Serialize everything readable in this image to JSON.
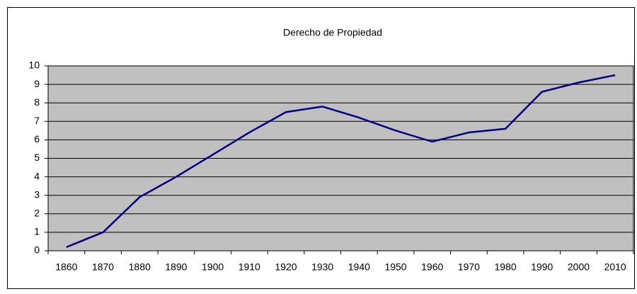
{
  "chart_data": {
    "type": "line",
    "title": "Derecho de Propiedad",
    "categories": [
      "1860",
      "1870",
      "1880",
      "1890",
      "1900",
      "1910",
      "1920",
      "1930",
      "1940",
      "1950",
      "1960",
      "1970",
      "1980",
      "1990",
      "2000",
      "2010"
    ],
    "values": [
      0.2,
      1.0,
      2.9,
      4.0,
      5.2,
      6.4,
      7.5,
      7.8,
      7.2,
      6.5,
      5.9,
      6.4,
      6.6,
      8.6,
      9.1,
      9.5
    ],
    "color": "#000080",
    "plot_background": "#c0c0c0",
    "ylim": [
      0,
      10
    ],
    "yticks": [
      0,
      1,
      2,
      3,
      4,
      5,
      6,
      7,
      8,
      9,
      10
    ],
    "grid": true
  }
}
